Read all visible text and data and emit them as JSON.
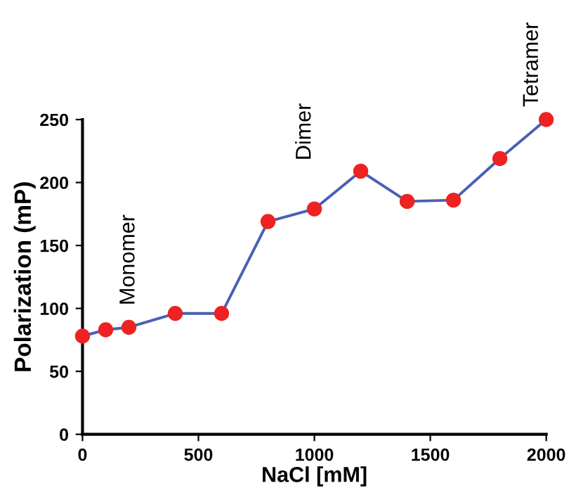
{
  "chart_data": {
    "type": "line",
    "xlabel": "NaCl [mM]",
    "ylabel": "Polarization (mP)",
    "x": [
      0,
      100,
      200,
      400,
      600,
      800,
      1000,
      1200,
      1400,
      1600,
      1800,
      2000
    ],
    "series": [
      {
        "color": "#4a5fb5",
        "colors": [
          "#ee2222",
          "#ee2222",
          "#ee2222",
          "#ee2222",
          "#ee2222",
          "#ee2222",
          "#ee2222",
          "#ee2222",
          "#ee2222",
          "#ee2222",
          "#ee2222",
          "#ee2222"
        ],
        "values": [
          78,
          83,
          85,
          96,
          96,
          169,
          179,
          209,
          185,
          186,
          219,
          250
        ]
      }
    ],
    "marker": "circle",
    "xlim": [
      0,
      2000
    ],
    "xticks": [
      0,
      500,
      1000,
      1500,
      2000
    ],
    "ylim": [
      0,
      250
    ],
    "yticks": [
      0,
      50,
      100,
      150,
      200,
      250
    ],
    "grid": false,
    "legend": false,
    "annotations": [
      "Monomer",
      "Dimer",
      "Tetramer"
    ]
  }
}
